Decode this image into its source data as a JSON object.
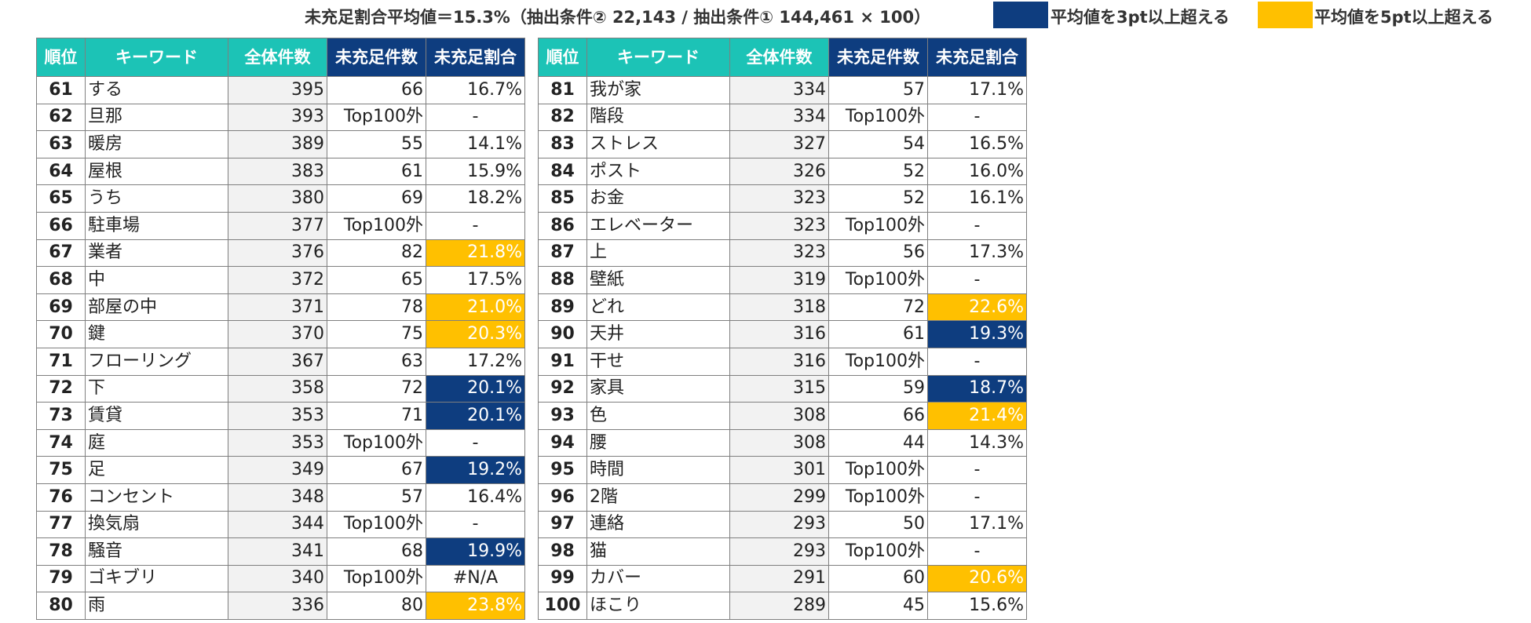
{
  "header": {
    "avg_note": "未充足割合平均値＝15.3%（抽出条件② 22,143 / 抽出条件① 144,461 × 100）",
    "legend": [
      {
        "label": "平均値を3pt以上超える",
        "color": "#0e3d7f"
      },
      {
        "label": "平均値を5pt以上超える",
        "color": "#ffc000"
      }
    ]
  },
  "columns": [
    "順位",
    "キーワード",
    "全体件数",
    "未充足件数",
    "未充足割合"
  ],
  "colors": {
    "teal": "#1cc3b6",
    "navy": "#0e3d7f",
    "yellow": "#ffc000"
  },
  "tables": [
    {
      "rows": [
        {
          "rank": "61",
          "keyword": "する",
          "total": "395",
          "unmet": "66",
          "rate": "16.7%",
          "hl": ""
        },
        {
          "rank": "62",
          "keyword": "旦那",
          "total": "393",
          "unmet": "Top100外",
          "rate": "-",
          "hl": ""
        },
        {
          "rank": "63",
          "keyword": "暖房",
          "total": "389",
          "unmet": "55",
          "rate": "14.1%",
          "hl": ""
        },
        {
          "rank": "64",
          "keyword": "屋根",
          "total": "383",
          "unmet": "61",
          "rate": "15.9%",
          "hl": ""
        },
        {
          "rank": "65",
          "keyword": "うち",
          "total": "380",
          "unmet": "69",
          "rate": "18.2%",
          "hl": ""
        },
        {
          "rank": "66",
          "keyword": "駐車場",
          "total": "377",
          "unmet": "Top100外",
          "rate": "-",
          "hl": ""
        },
        {
          "rank": "67",
          "keyword": "業者",
          "total": "376",
          "unmet": "82",
          "rate": "21.8%",
          "hl": "hi5"
        },
        {
          "rank": "68",
          "keyword": "中",
          "total": "372",
          "unmet": "65",
          "rate": "17.5%",
          "hl": ""
        },
        {
          "rank": "69",
          "keyword": "部屋の中",
          "total": "371",
          "unmet": "78",
          "rate": "21.0%",
          "hl": "hi5"
        },
        {
          "rank": "70",
          "keyword": "鍵",
          "total": "370",
          "unmet": "75",
          "rate": "20.3%",
          "hl": "hi5"
        },
        {
          "rank": "71",
          "keyword": "フローリング",
          "total": "367",
          "unmet": "63",
          "rate": "17.2%",
          "hl": ""
        },
        {
          "rank": "72",
          "keyword": "下",
          "total": "358",
          "unmet": "72",
          "rate": "20.1%",
          "hl": "hi3"
        },
        {
          "rank": "73",
          "keyword": "賃貸",
          "total": "353",
          "unmet": "71",
          "rate": "20.1%",
          "hl": "hi3"
        },
        {
          "rank": "74",
          "keyword": "庭",
          "total": "353",
          "unmet": "Top100外",
          "rate": "-",
          "hl": ""
        },
        {
          "rank": "75",
          "keyword": "足",
          "total": "349",
          "unmet": "67",
          "rate": "19.2%",
          "hl": "hi3"
        },
        {
          "rank": "76",
          "keyword": "コンセント",
          "total": "348",
          "unmet": "57",
          "rate": "16.4%",
          "hl": ""
        },
        {
          "rank": "77",
          "keyword": "換気扇",
          "total": "344",
          "unmet": "Top100外",
          "rate": "-",
          "hl": ""
        },
        {
          "rank": "78",
          "keyword": "騒音",
          "total": "341",
          "unmet": "68",
          "rate": "19.9%",
          "hl": "hi3"
        },
        {
          "rank": "79",
          "keyword": "ゴキブリ",
          "total": "340",
          "unmet": "Top100外",
          "rate": "#N/A",
          "hl": ""
        },
        {
          "rank": "80",
          "keyword": "雨",
          "total": "336",
          "unmet": "80",
          "rate": "23.8%",
          "hl": "hi5"
        }
      ]
    },
    {
      "rows": [
        {
          "rank": "81",
          "keyword": "我が家",
          "total": "334",
          "unmet": "57",
          "rate": "17.1%",
          "hl": ""
        },
        {
          "rank": "82",
          "keyword": "階段",
          "total": "334",
          "unmet": "Top100外",
          "rate": "-",
          "hl": ""
        },
        {
          "rank": "83",
          "keyword": "ストレス",
          "total": "327",
          "unmet": "54",
          "rate": "16.5%",
          "hl": ""
        },
        {
          "rank": "84",
          "keyword": "ポスト",
          "total": "326",
          "unmet": "52",
          "rate": "16.0%",
          "hl": ""
        },
        {
          "rank": "85",
          "keyword": "お金",
          "total": "323",
          "unmet": "52",
          "rate": "16.1%",
          "hl": ""
        },
        {
          "rank": "86",
          "keyword": "エレベーター",
          "total": "323",
          "unmet": "Top100外",
          "rate": "-",
          "hl": ""
        },
        {
          "rank": "87",
          "keyword": "上",
          "total": "323",
          "unmet": "56",
          "rate": "17.3%",
          "hl": ""
        },
        {
          "rank": "88",
          "keyword": "壁紙",
          "total": "319",
          "unmet": "Top100外",
          "rate": "-",
          "hl": ""
        },
        {
          "rank": "89",
          "keyword": "どれ",
          "total": "318",
          "unmet": "72",
          "rate": "22.6%",
          "hl": "hi5"
        },
        {
          "rank": "90",
          "keyword": "天井",
          "total": "316",
          "unmet": "61",
          "rate": "19.3%",
          "hl": "hi3"
        },
        {
          "rank": "91",
          "keyword": "干せ",
          "total": "316",
          "unmet": "Top100外",
          "rate": "-",
          "hl": ""
        },
        {
          "rank": "92",
          "keyword": "家具",
          "total": "315",
          "unmet": "59",
          "rate": "18.7%",
          "hl": "hi3"
        },
        {
          "rank": "93",
          "keyword": "色",
          "total": "308",
          "unmet": "66",
          "rate": "21.4%",
          "hl": "hi5"
        },
        {
          "rank": "94",
          "keyword": "腰",
          "total": "308",
          "unmet": "44",
          "rate": "14.3%",
          "hl": ""
        },
        {
          "rank": "95",
          "keyword": "時間",
          "total": "301",
          "unmet": "Top100外",
          "rate": "-",
          "hl": ""
        },
        {
          "rank": "96",
          "keyword": "2階",
          "total": "299",
          "unmet": "Top100外",
          "rate": "-",
          "hl": ""
        },
        {
          "rank": "97",
          "keyword": "連絡",
          "total": "293",
          "unmet": "50",
          "rate": "17.1%",
          "hl": ""
        },
        {
          "rank": "98",
          "keyword": "猫",
          "total": "293",
          "unmet": "Top100外",
          "rate": "-",
          "hl": ""
        },
        {
          "rank": "99",
          "keyword": "カバー",
          "total": "291",
          "unmet": "60",
          "rate": "20.6%",
          "hl": "hi5"
        },
        {
          "rank": "100",
          "keyword": "ほこり",
          "total": "289",
          "unmet": "45",
          "rate": "15.6%",
          "hl": ""
        }
      ]
    }
  ]
}
